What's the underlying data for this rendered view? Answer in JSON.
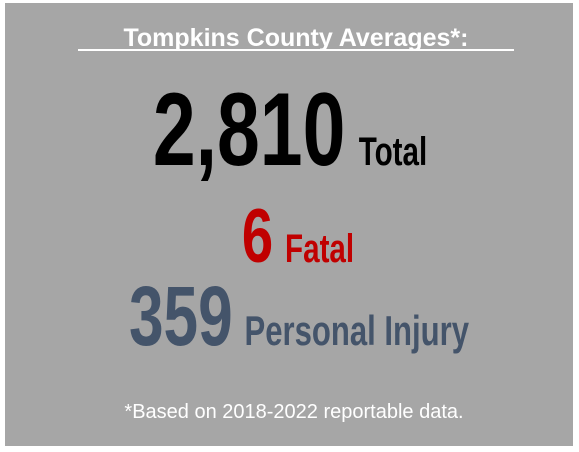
{
  "header": {
    "title": "Tompkins County Averages*:"
  },
  "stats": [
    {
      "value": "2,810",
      "label": "Total"
    },
    {
      "value": "6",
      "label": "Fatal"
    },
    {
      "value": "359",
      "label": "Personal Injury"
    }
  ],
  "footnote": "*Based on 2018-2022 reportable data."
}
